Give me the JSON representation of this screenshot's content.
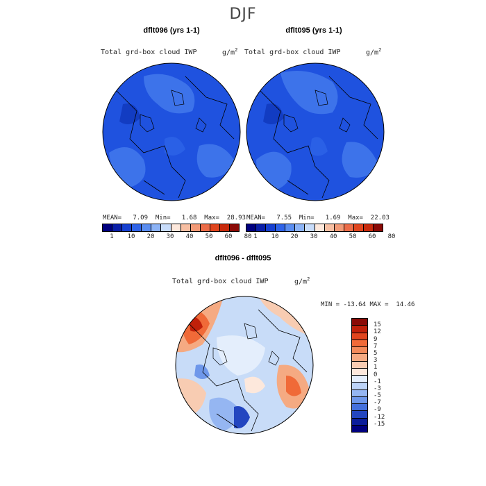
{
  "title": "DJF",
  "panels": [
    {
      "title": "dflt096 (yrs 1-1)",
      "field_label": "Total grd-box cloud IWP",
      "units": "g/m",
      "units_sup": "2",
      "stats": "MEAN=   7.09  Min=   1.68  Max=  28.93"
    },
    {
      "title": "dflt095 (yrs 1-1)",
      "field_label": "Total grd-box cloud IWP",
      "units": "g/m",
      "units_sup": "2",
      "stats": "MEAN=   7.55  Min=   1.69  Max=  22.03"
    }
  ],
  "abs_colorbar": {
    "colors": [
      "#00007f",
      "#0a1fa8",
      "#1740d0",
      "#2f63e8",
      "#5a8df0",
      "#8cb3f6",
      "#c8dcfa",
      "#fde8dc",
      "#f7bfa3",
      "#f29a77",
      "#ec6c48",
      "#e0451e",
      "#c82a0c",
      "#8a0a06"
    ],
    "ticks": [
      "1",
      "10",
      "20",
      "30",
      "40",
      "50",
      "60",
      "80"
    ]
  },
  "diff_panel": {
    "title": "dflt096 - dflt095",
    "field_label": "Total grd-box cloud IWP",
    "units": "g/m",
    "units_sup": "2",
    "stats": "MIN = -13.64 MAX =  14.46"
  },
  "diff_colorbar": {
    "colors": [
      "#8a0a06",
      "#c0200a",
      "#e0451e",
      "#f06a38",
      "#f28a5a",
      "#f5aa82",
      "#f8ccb2",
      "#fde8dc",
      "#e4eefc",
      "#bcd3f8",
      "#95b6f2",
      "#6e97ea",
      "#4470dc",
      "#2346c0",
      "#0b1d9a",
      "#00007f"
    ],
    "ticks": [
      "15",
      "12",
      "9",
      "7",
      "5",
      "3",
      "1",
      "0",
      "-1",
      "-3",
      "-5",
      "-7",
      "-9",
      "-12",
      "-15"
    ]
  },
  "colors": {
    "map_base": "#1f52df",
    "map_light": "#3d73ea",
    "map_dark": "#123cc2"
  }
}
